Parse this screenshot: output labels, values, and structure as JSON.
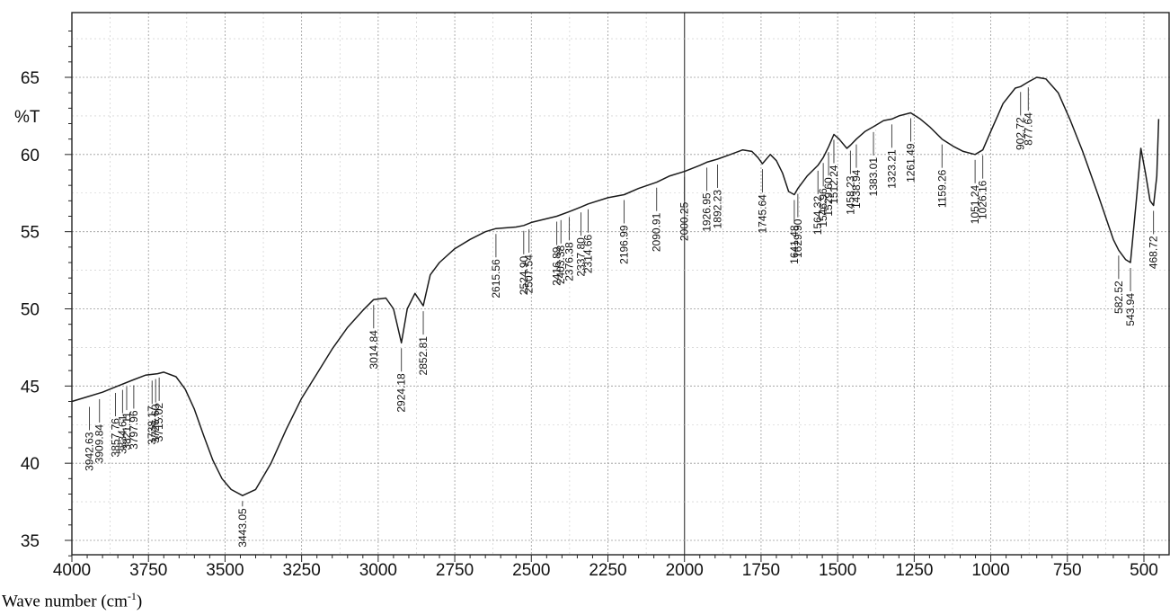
{
  "chart_data": {
    "type": "line",
    "title": "",
    "xlabel": {
      "main": "Wave number (cm",
      "sup": "-1",
      "tail": ")"
    },
    "ylabel": "%T",
    "xlim": [
      4000,
      450
    ],
    "ylim": [
      33.5,
      69
    ],
    "x_ticks": [
      4000,
      3750,
      3500,
      3250,
      3000,
      2750,
      2500,
      2250,
      2000,
      1750,
      1500,
      1250,
      1000,
      750,
      500
    ],
    "y_ticks": [
      35,
      40,
      45,
      50,
      55,
      60,
      65
    ],
    "grid": true,
    "series": [
      {
        "points": [
          [
            4000,
            44.0
          ],
          [
            3950,
            44.3
          ],
          [
            3900,
            44.6
          ],
          [
            3850,
            45.0
          ],
          [
            3800,
            45.4
          ],
          [
            3760,
            45.7
          ],
          [
            3720,
            45.8
          ],
          [
            3700,
            45.9
          ],
          [
            3660,
            45.6
          ],
          [
            3630,
            44.8
          ],
          [
            3600,
            43.5
          ],
          [
            3570,
            41.8
          ],
          [
            3540,
            40.2
          ],
          [
            3510,
            39.0
          ],
          [
            3480,
            38.3
          ],
          [
            3443,
            37.9
          ],
          [
            3400,
            38.3
          ],
          [
            3350,
            40.0
          ],
          [
            3300,
            42.2
          ],
          [
            3250,
            44.2
          ],
          [
            3200,
            45.8
          ],
          [
            3150,
            47.4
          ],
          [
            3100,
            48.8
          ],
          [
            3050,
            49.9
          ],
          [
            3014.84,
            50.6
          ],
          [
            2975,
            50.7
          ],
          [
            2950,
            50.0
          ],
          [
            2924.18,
            47.8
          ],
          [
            2905,
            50.0
          ],
          [
            2880,
            51.0
          ],
          [
            2852.81,
            50.2
          ],
          [
            2830,
            52.2
          ],
          [
            2800,
            53.0
          ],
          [
            2750,
            53.9
          ],
          [
            2700,
            54.5
          ],
          [
            2650,
            55.0
          ],
          [
            2615.56,
            55.2
          ],
          [
            2550,
            55.3
          ],
          [
            2524.9,
            55.4
          ],
          [
            2500,
            55.6
          ],
          [
            2416.89,
            56.0
          ],
          [
            2376.38,
            56.3
          ],
          [
            2337.8,
            56.6
          ],
          [
            2314.66,
            56.8
          ],
          [
            2250,
            57.2
          ],
          [
            2196.99,
            57.4
          ],
          [
            2150,
            57.8
          ],
          [
            2090.91,
            58.2
          ],
          [
            2050,
            58.6
          ],
          [
            2000.25,
            58.9
          ],
          [
            1950,
            59.3
          ],
          [
            1926.95,
            59.5
          ],
          [
            1892.23,
            59.7
          ],
          [
            1850,
            60.0
          ],
          [
            1810,
            60.3
          ],
          [
            1780,
            60.2
          ],
          [
            1760,
            59.8
          ],
          [
            1745.64,
            59.4
          ],
          [
            1720,
            60.0
          ],
          [
            1700,
            59.6
          ],
          [
            1680,
            58.8
          ],
          [
            1660,
            57.6
          ],
          [
            1641.48,
            57.4
          ],
          [
            1629.9,
            57.8
          ],
          [
            1600,
            58.6
          ],
          [
            1564.32,
            59.3
          ],
          [
            1546.96,
            59.8
          ],
          [
            1529.6,
            60.5
          ],
          [
            1512.24,
            61.3
          ],
          [
            1495,
            61.0
          ],
          [
            1470,
            60.4
          ],
          [
            1458.23,
            60.6
          ],
          [
            1438.94,
            61.0
          ],
          [
            1410,
            61.5
          ],
          [
            1383.01,
            61.8
          ],
          [
            1350,
            62.2
          ],
          [
            1323.21,
            62.3
          ],
          [
            1300,
            62.5
          ],
          [
            1261.49,
            62.7
          ],
          [
            1230,
            62.3
          ],
          [
            1200,
            61.8
          ],
          [
            1159.26,
            61.0
          ],
          [
            1120,
            60.5
          ],
          [
            1090,
            60.2
          ],
          [
            1051.24,
            60.0
          ],
          [
            1026.16,
            60.3
          ],
          [
            1000,
            61.5
          ],
          [
            960,
            63.3
          ],
          [
            920,
            64.3
          ],
          [
            902.72,
            64.4
          ],
          [
            877.64,
            64.7
          ],
          [
            850,
            65.0
          ],
          [
            820,
            64.9
          ],
          [
            780,
            64.0
          ],
          [
            740,
            62.2
          ],
          [
            700,
            60.2
          ],
          [
            650,
            57.4
          ],
          [
            600,
            54.5
          ],
          [
            582.52,
            53.8
          ],
          [
            560,
            53.2
          ],
          [
            543.94,
            53.0
          ],
          [
            525,
            57.0
          ],
          [
            510,
            60.4
          ],
          [
            495,
            58.8
          ],
          [
            480,
            57.0
          ],
          [
            468.72,
            56.7
          ],
          [
            458,
            58.6
          ],
          [
            452,
            62.3
          ]
        ]
      }
    ],
    "peak_labels": [
      {
        "x": 3942.63,
        "y": 44.0,
        "text": "3942.63"
      },
      {
        "x": 3909.84,
        "y": 44.5,
        "text": "3909.84"
      },
      {
        "x": 3857.76,
        "y": 44.9,
        "text": "3857.76"
      },
      {
        "x": 3834.61,
        "y": 45.1,
        "text": "3834.61"
      },
      {
        "x": 3821.11,
        "y": 45.3,
        "text": "3821.11"
      },
      {
        "x": 3797.96,
        "y": 45.4,
        "text": "3797.96"
      },
      {
        "x": 3738.17,
        "y": 45.7,
        "text": "3738.17"
      },
      {
        "x": 3726.6,
        "y": 45.8,
        "text": "3726.60"
      },
      {
        "x": 3715.02,
        "y": 45.9,
        "text": "3715.02"
      },
      {
        "x": 3443.05,
        "y": 37.9,
        "text": "3443.05"
      },
      {
        "x": 3014.84,
        "y": 50.6,
        "text": "3014.84"
      },
      {
        "x": 2924.18,
        "y": 47.8,
        "text": "2924.18"
      },
      {
        "x": 2852.81,
        "y": 50.2,
        "text": "2852.81"
      },
      {
        "x": 2615.56,
        "y": 55.2,
        "text": "2615.56"
      },
      {
        "x": 2524.9,
        "y": 55.4,
        "text": "2524.90"
      },
      {
        "x": 2507.54,
        "y": 55.5,
        "text": "2507.54"
      },
      {
        "x": 2416.89,
        "y": 56.0,
        "text": "2416.89"
      },
      {
        "x": 2403.38,
        "y": 56.1,
        "text": "2403.38"
      },
      {
        "x": 2376.38,
        "y": 56.3,
        "text": "2376.38"
      },
      {
        "x": 2337.8,
        "y": 56.6,
        "text": "2337.80"
      },
      {
        "x": 2314.66,
        "y": 56.8,
        "text": "2314.66"
      },
      {
        "x": 2196.99,
        "y": 57.4,
        "text": "2196.99"
      },
      {
        "x": 2090.91,
        "y": 58.2,
        "text": "2090.91"
      },
      {
        "x": 2000.25,
        "y": 58.9,
        "text": "2000.25"
      },
      {
        "x": 1926.95,
        "y": 59.5,
        "text": "1926.95"
      },
      {
        "x": 1892.23,
        "y": 59.7,
        "text": "1892.23"
      },
      {
        "x": 1745.64,
        "y": 59.4,
        "text": "1745.64"
      },
      {
        "x": 1641.48,
        "y": 57.4,
        "text": "1641.48"
      },
      {
        "x": 1629.9,
        "y": 57.8,
        "text": "1629.90"
      },
      {
        "x": 1564.32,
        "y": 59.3,
        "text": "1564.32"
      },
      {
        "x": 1546.96,
        "y": 59.8,
        "text": "1546.96"
      },
      {
        "x": 1529.6,
        "y": 60.5,
        "text": "1529.60"
      },
      {
        "x": 1512.24,
        "y": 61.3,
        "text": "1512.24"
      },
      {
        "x": 1458.23,
        "y": 60.6,
        "text": "1458.23"
      },
      {
        "x": 1438.94,
        "y": 61.0,
        "text": "1438.94"
      },
      {
        "x": 1383.01,
        "y": 61.8,
        "text": "1383.01"
      },
      {
        "x": 1323.21,
        "y": 62.3,
        "text": "1323.21"
      },
      {
        "x": 1261.49,
        "y": 62.7,
        "text": "1261.49"
      },
      {
        "x": 1159.26,
        "y": 61.0,
        "text": "1159.26"
      },
      {
        "x": 1051.24,
        "y": 60.0,
        "text": "1051.24"
      },
      {
        "x": 1026.16,
        "y": 60.3,
        "text": "1026.16"
      },
      {
        "x": 902.72,
        "y": 64.4,
        "text": "902.72"
      },
      {
        "x": 877.64,
        "y": 64.7,
        "text": "877.64"
      },
      {
        "x": 582.52,
        "y": 53.8,
        "text": "582.52"
      },
      {
        "x": 543.94,
        "y": 53.0,
        "text": "543.94"
      },
      {
        "x": 468.72,
        "y": 56.7,
        "text": "468.72"
      }
    ]
  }
}
